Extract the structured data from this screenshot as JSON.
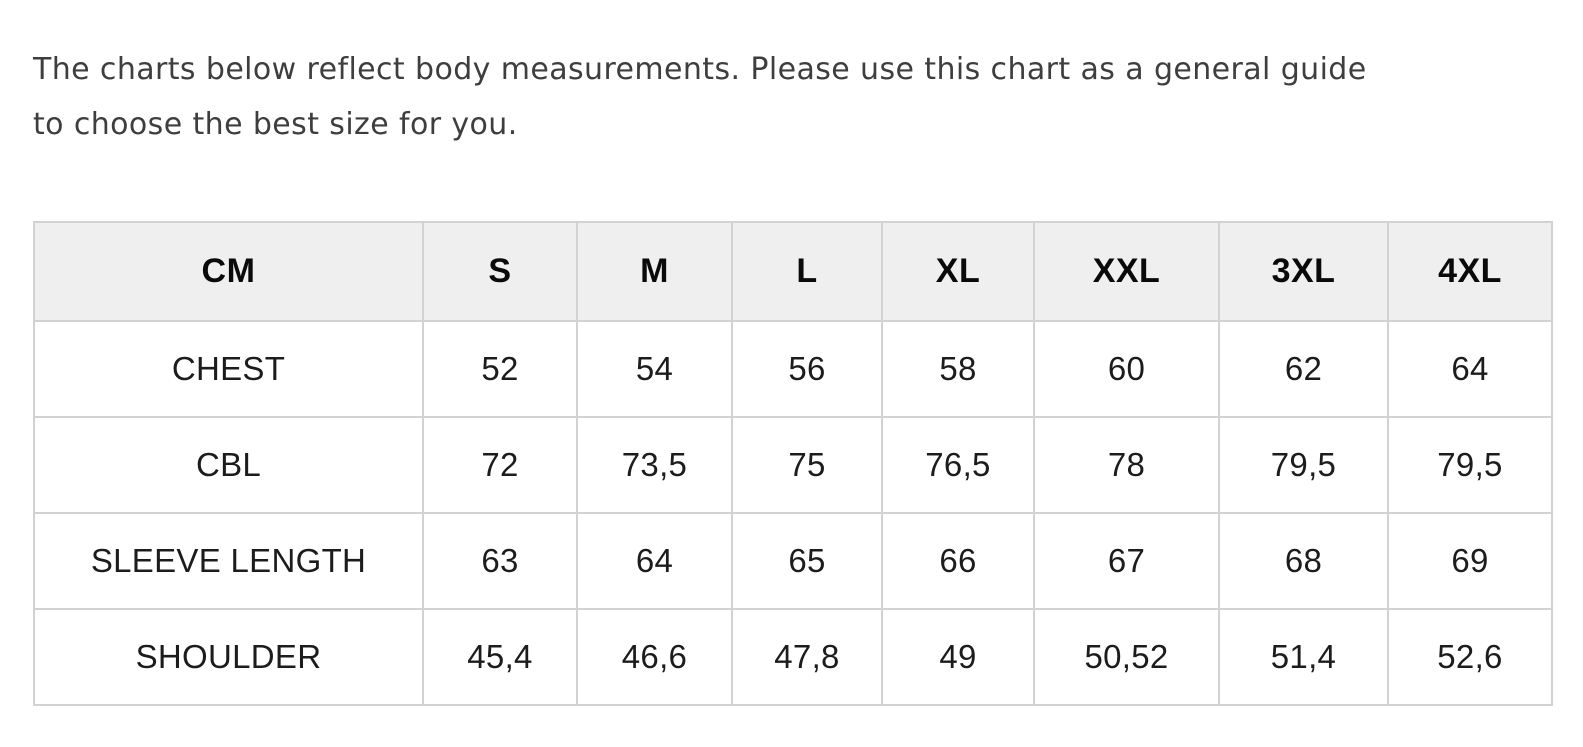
{
  "intro": {
    "lines": [
      "The charts below reflect body measurements. Please use this chart as a general guide",
      "to choose the best size for you."
    ]
  },
  "size_chart": {
    "unit_label": "CM",
    "size_headers": [
      "S",
      "M",
      "L",
      "XL",
      "XXL",
      "3XL",
      "4XL"
    ],
    "rows": [
      {
        "label": "CHEST",
        "values": [
          "52",
          "54",
          "56",
          "58",
          "60",
          "62",
          "64"
        ]
      },
      {
        "label": "CBL",
        "values": [
          "72",
          "73,5",
          "75",
          "76,5",
          "78",
          "79,5",
          "79,5"
        ]
      },
      {
        "label": "SLEEVE LENGTH",
        "values": [
          "63",
          "64",
          "65",
          "66",
          "67",
          "68",
          "69"
        ]
      },
      {
        "label": "SHOULDER",
        "values": [
          "45,4",
          "46,6",
          "47,8",
          "49",
          "50,52",
          "51,4",
          "52,6"
        ]
      }
    ]
  },
  "colors": {
    "page_bg": "#ffffff",
    "intro_text": "#3e3e3e",
    "table_border": "#d2d2d2",
    "header_bg": "#efefef",
    "header_text": "#0a0a0a",
    "body_text": "#1c1c1c"
  }
}
